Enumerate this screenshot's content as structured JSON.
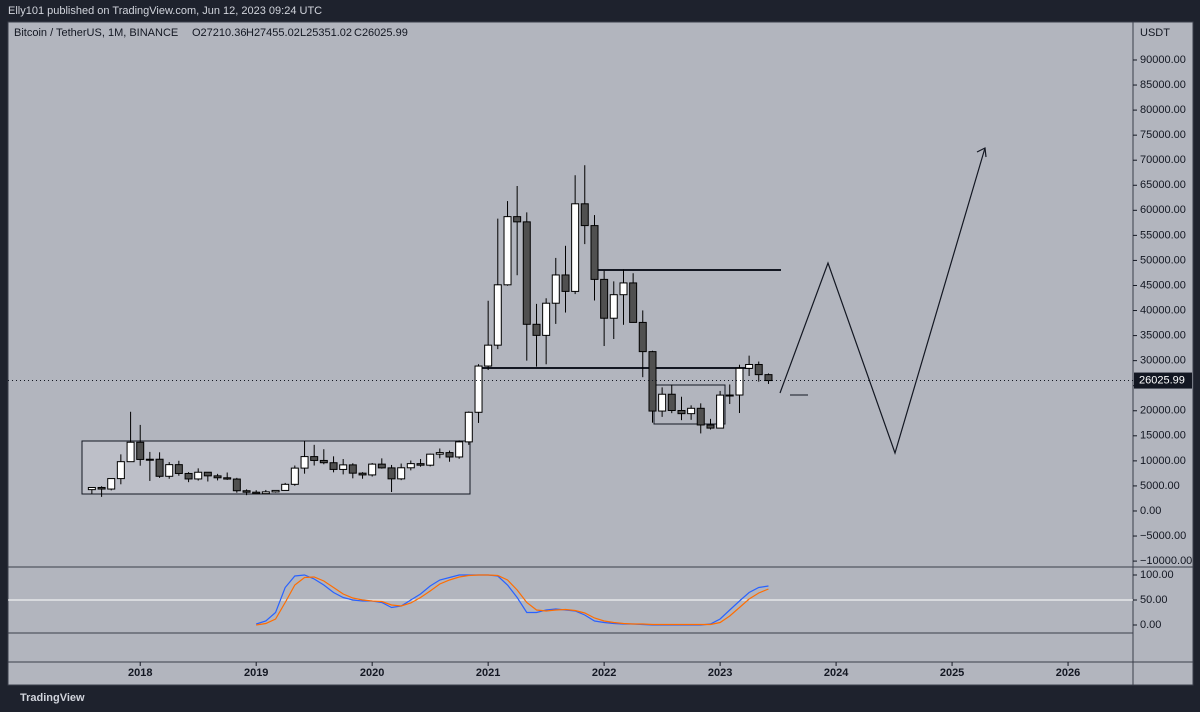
{
  "header": {
    "publisher": "Elly101 published on TradingView.com, Jun 12, 2023 09:24 UTC",
    "symbol": "Bitcoin / TetherUS, 1M, BINANCE",
    "open": "O27210.36",
    "high": "H27455.02",
    "low": "L25351.02",
    "close": "C26025.99",
    "unit": "USDT"
  },
  "footer": {
    "brand": "TradingView"
  },
  "chart_data": [
    {
      "type": "candlestick",
      "up_color": "#ffffff",
      "down_color": "#505050",
      "outline_color": "#000000",
      "x": [
        2017.583,
        2017.667,
        2017.75,
        2017.833,
        2017.917,
        2018,
        2018.083,
        2018.167,
        2018.25,
        2018.333,
        2018.417,
        2018.5,
        2018.583,
        2018.667,
        2018.75,
        2018.833,
        2018.917,
        2019,
        2019.083,
        2019.167,
        2019.25,
        2019.333,
        2019.417,
        2019.5,
        2019.583,
        2019.667,
        2019.75,
        2019.833,
        2019.917,
        2020,
        2020.083,
        2020.167,
        2020.25,
        2020.333,
        2020.417,
        2020.5,
        2020.583,
        2020.667,
        2020.75,
        2020.833,
        2020.917,
        2021,
        2021.083,
        2021.167,
        2021.25,
        2021.333,
        2021.417,
        2021.5,
        2021.583,
        2021.667,
        2021.75,
        2021.833,
        2021.917,
        2022,
        2022.083,
        2022.167,
        2022.25,
        2022.333,
        2022.417,
        2022.5,
        2022.583,
        2022.667,
        2022.75,
        2022.833,
        2022.917,
        2023,
        2023.083,
        2023.167,
        2023.25,
        2023.333,
        2023.417
      ],
      "open": [
        4261,
        4690,
        4378,
        6463,
        9838,
        13716,
        10285,
        10326,
        6922,
        9246,
        7485,
        6391,
        7730,
        7011,
        6626,
        6370,
        4041,
        3746,
        3460,
        3814,
        4102,
        5320,
        8555,
        10854,
        10085,
        9630,
        8293,
        9200,
        7546,
        7195,
        9351,
        8600,
        6412,
        8620,
        9448,
        9138,
        11335,
        11649,
        10776,
        13791,
        19695,
        28923,
        33092,
        45134,
        58739,
        57697,
        37253,
        35045,
        41461,
        47100,
        43820,
        61300,
        56950,
        46216,
        38466,
        43160,
        45510,
        37630,
        31801,
        19942,
        23297,
        20050,
        19423,
        20490,
        17165,
        16541,
        23125,
        23141,
        28465,
        29233,
        27210.36
      ],
      "high": [
        4745,
        4939,
        6470,
        11300,
        19798,
        17176,
        11786,
        11710,
        9759,
        10020,
        7754,
        8507,
        7760,
        7410,
        7680,
        6615,
        4313,
        4140,
        4198,
        4140,
        5600,
        9074,
        13970,
        13200,
        12325,
        10905,
        10370,
        9528,
        7750,
        9578,
        10500,
        9188,
        9468,
        10067,
        10380,
        11444,
        12468,
        12050,
        14100,
        19863,
        29300,
        41950,
        58352,
        61844,
        64854,
        59600,
        41330,
        42448,
        50500,
        52920,
        67000,
        69000,
        59053,
        47990,
        45821,
        48189,
        47444,
        40023,
        31986,
        24668,
        25211,
        22799,
        21085,
        21480,
        18388,
        23960,
        25250,
        29184,
        31000,
        29820,
        27455.02
      ],
      "low": [
        3400,
        2817,
        4110,
        5325,
        10400,
        9035,
        6000,
        6600,
        6430,
        7032,
        5750,
        6070,
        5880,
        6100,
        6200,
        3652,
        3156,
        3349,
        3373,
        3670,
        4067,
        5025,
        7444,
        9071,
        9320,
        7710,
        7300,
        6515,
        6435,
        6871,
        8445,
        3782,
        6150,
        8107,
        8833,
        8893,
        10520,
        9825,
        10416,
        13195,
        17572,
        28130,
        32296,
        44950,
        47044,
        30000,
        28805,
        29278,
        37332,
        39600,
        43283,
        53256,
        42000,
        32917,
        34322,
        37155,
        37578,
        26700,
        17622,
        18781,
        19520,
        18125,
        18190,
        15476,
        16256,
        16499,
        21351,
        19549,
        26942,
        25811,
        25351.02
      ],
      "close": [
        4690,
        4378,
        6463,
        9838,
        13716,
        10285,
        10326,
        6922,
        9246,
        7485,
        6391,
        7730,
        7011,
        6626,
        6370,
        4041,
        3746,
        3460,
        3814,
        4102,
        5320,
        8555,
        10854,
        10085,
        9630,
        8293,
        9200,
        7546,
        7195,
        9351,
        8600,
        6412,
        8620,
        9448,
        9138,
        11335,
        11649,
        10776,
        13791,
        19695,
        28923,
        33092,
        45134,
        58739,
        57697,
        37253,
        35045,
        41461,
        47100,
        43820,
        61300,
        56950,
        46216,
        38466,
        43160,
        45510,
        37630,
        31801,
        19942,
        23297,
        20050,
        19423,
        20490,
        17164,
        16541,
        23125,
        23141,
        28465,
        29233,
        27210,
        26025.99
      ],
      "xlim": [
        2016.86,
        2026.56
      ],
      "xticks": [
        2018,
        2019,
        2020,
        2021,
        2022,
        2023,
        2024,
        2025,
        2026
      ],
      "ylim": [
        -10980,
        97580
      ],
      "yticks": [
        {
          "value": -10000,
          "label": "−10000.00"
        },
        {
          "value": -5000,
          "label": "−5000.00"
        },
        {
          "value": 0,
          "label": "0.00"
        },
        {
          "value": 5000,
          "label": "5000.00"
        },
        {
          "value": 10000,
          "label": "10000.00"
        },
        {
          "value": 15000,
          "label": "15000.00"
        },
        {
          "value": 20000,
          "label": "20000.00"
        },
        {
          "value": 25000,
          "label": "25000.00"
        },
        {
          "value": 30000,
          "label": "30000.00"
        },
        {
          "value": 35000,
          "label": "35000.00"
        },
        {
          "value": 40000,
          "label": "40000.00"
        },
        {
          "value": 45000,
          "label": "45000.00"
        },
        {
          "value": 50000,
          "label": "50000.00"
        },
        {
          "value": 55000,
          "label": "55000.00"
        },
        {
          "value": 60000,
          "label": "60000.00"
        },
        {
          "value": 65000,
          "label": "65000.00"
        },
        {
          "value": 70000,
          "label": "70000.00"
        },
        {
          "value": 75000,
          "label": "75000.00"
        },
        {
          "value": 80000,
          "label": "80000.00"
        },
        {
          "value": 85000,
          "label": "85000.00"
        },
        {
          "value": 90000,
          "label": "90000.00"
        }
      ]
    },
    {
      "type": "line",
      "x": [
        2019,
        2019.083,
        2019.167,
        2019.25,
        2019.333,
        2019.417,
        2019.5,
        2019.583,
        2019.667,
        2019.75,
        2019.833,
        2019.917,
        2020,
        2020.083,
        2020.167,
        2020.25,
        2020.333,
        2020.417,
        2020.5,
        2020.583,
        2020.667,
        2020.75,
        2020.833,
        2020.917,
        2021,
        2021.083,
        2021.167,
        2021.25,
        2021.333,
        2021.417,
        2021.5,
        2021.583,
        2021.667,
        2021.75,
        2021.833,
        2021.917,
        2022,
        2022.083,
        2022.167,
        2022.25,
        2022.333,
        2022.417,
        2022.5,
        2022.583,
        2022.667,
        2022.75,
        2022.833,
        2022.917,
        2023,
        2023.083,
        2023.167,
        2023.25,
        2023.333,
        2023.417
      ],
      "series": [
        {
          "color": "#2962ff",
          "values": [
            2,
            8,
            25,
            75,
            98,
            100,
            92,
            80,
            65,
            55,
            50,
            48,
            48,
            45,
            35,
            38,
            50,
            62,
            78,
            90,
            95,
            100,
            100,
            100,
            100,
            98,
            80,
            55,
            25,
            25,
            30,
            32,
            30,
            28,
            20,
            8,
            5,
            3,
            2,
            2,
            1,
            0,
            0,
            0,
            0,
            0,
            0,
            2,
            12,
            30,
            48,
            65,
            75,
            78
          ]
        },
        {
          "color": "#ff6d00",
          "values": [
            0,
            3,
            12,
            45,
            80,
            95,
            96,
            88,
            75,
            62,
            54,
            50,
            48,
            47,
            40,
            38,
            44,
            55,
            68,
            82,
            90,
            96,
            99,
            100,
            100,
            99,
            90,
            70,
            45,
            30,
            28,
            30,
            31,
            29,
            24,
            14,
            8,
            5,
            3,
            2,
            2,
            1,
            1,
            1,
            1,
            1,
            1,
            1,
            5,
            18,
            35,
            52,
            64,
            72
          ]
        }
      ],
      "xlim": [
        2016.86,
        2026.56
      ],
      "ylim": [
        -74,
        116
      ],
      "yticks": [
        {
          "value": 0,
          "label": "0.00"
        },
        {
          "value": 50,
          "label": "50.00"
        },
        {
          "value": 100,
          "label": "100.00"
        }
      ],
      "level": 50
    }
  ]
}
